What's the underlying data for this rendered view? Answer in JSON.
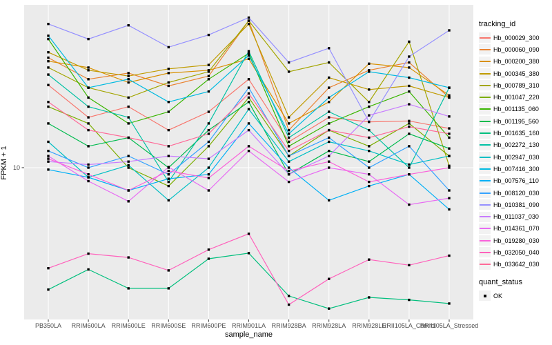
{
  "figure": {
    "background": "#FFFFFF",
    "panel_background": "#EBEBEB",
    "grid_color": "#FFFFFF",
    "tick_color": "#333333",
    "tick_label_color": "#4D4D4D",
    "axis_title_color": "#000000",
    "point_color": "#000000",
    "legend_key_background": "#F2F2F2"
  },
  "chart_data": {
    "type": "line",
    "title": "",
    "xlabel": "sample_name",
    "ylabel": "FPKM + 1",
    "y_scale": "log10",
    "y_tick_labels": [
      "10"
    ],
    "y_tick_values": [
      10
    ],
    "ylim": [
      0.9,
      120
    ],
    "grid": "major-on",
    "legend_position": "right",
    "categories": [
      "PB350LA",
      "RRIM600LA",
      "RRIM600LE",
      "RRIM600SE",
      "RRIM600PE",
      "RRIM901LA",
      "RRIM928BA",
      "RRIM928LA",
      "RRIM928LE",
      "RRII105LA_Control",
      "RRII105LA_Stressed"
    ],
    "series": [
      {
        "name": "Hb_000029_300",
        "color": "#F8766D",
        "values": [
          36.5,
          22,
          26,
          18,
          24,
          40,
          15,
          22,
          20.5,
          20.8,
          18.5
        ]
      },
      {
        "name": "Hb_000060_090",
        "color": "#EA8331",
        "values": [
          56,
          40,
          44,
          36,
          42,
          100,
          18,
          35,
          46,
          52,
          30
        ]
      },
      {
        "name": "Hb_000200_380",
        "color": "#D89000",
        "values": [
          53,
          48,
          38,
          44,
          46,
          55,
          20,
          28,
          51,
          48,
          31
        ]
      },
      {
        "name": "Hb_000345_380",
        "color": "#C09B00",
        "values": [
          61,
          46,
          42,
          47,
          50,
          95,
          22,
          41,
          34,
          36,
          30
        ]
      },
      {
        "name": "Hb_000789_310",
        "color": "#A3A500",
        "values": [
          48,
          35,
          30,
          38,
          45,
          100,
          45,
          52,
          28,
          72,
          10.3
        ]
      },
      {
        "name": "Hb_001047_220",
        "color": "#7CAE00",
        "values": [
          26,
          20,
          10,
          7.5,
          14,
          30,
          12,
          18,
          14,
          20,
          12
        ]
      },
      {
        "name": "Hb_001135_060",
        "color": "#39B600",
        "values": [
          75,
          30,
          20,
          24,
          40,
          60,
          14,
          20,
          26,
          33,
          16
        ]
      },
      {
        "name": "Hb_001195_560",
        "color": "#00BB4E",
        "values": [
          20,
          14,
          16,
          10,
          18,
          28,
          9,
          13,
          11,
          17,
          13.5
        ]
      },
      {
        "name": "Hb_001635_160",
        "color": "#00BF7D",
        "values": [
          1.48,
          2.03,
          1.51,
          1.51,
          2.4,
          2.62,
          1.34,
          1.1,
          1.31,
          1.26,
          1.19
        ]
      },
      {
        "name": "Hb_002272_130",
        "color": "#00C1A3",
        "values": [
          43,
          26,
          22,
          8,
          20,
          62,
          16,
          24,
          18,
          10,
          35
        ]
      },
      {
        "name": "Hb_002947_030",
        "color": "#00BFC4",
        "values": [
          15,
          8.6,
          10.4,
          6,
          10,
          25,
          11,
          15,
          13,
          10.5,
          12
        ]
      },
      {
        "name": "Hb_007416_300",
        "color": "#00BAE0",
        "values": [
          79,
          35,
          40,
          28,
          33,
          58,
          17,
          30,
          45,
          41,
          35
        ]
      },
      {
        "name": "Hb_007576_110",
        "color": "#00B0F6",
        "values": [
          9.7,
          8.6,
          7,
          8.4,
          9,
          20,
          10,
          6,
          7.5,
          9,
          5.2
        ]
      },
      {
        "name": "Hb_008120_030",
        "color": "#35A2FF",
        "values": [
          13,
          10,
          12,
          9,
          15,
          35,
          12,
          16,
          10,
          14,
          7
        ]
      },
      {
        "name": "Hb_010381_090",
        "color": "#9590FF",
        "values": [
          95,
          75,
          93,
          66,
          80,
          105,
          52,
          65,
          20.5,
          57,
          86
        ]
      },
      {
        "name": "Hb_011037_030",
        "color": "#C77CFF",
        "values": [
          11,
          10.5,
          11,
          12,
          11.5,
          18,
          9,
          12,
          22.7,
          27,
          22.3
        ]
      },
      {
        "name": "Hb_014361_070",
        "color": "#E76BF3",
        "values": [
          12,
          8.1,
          5.9,
          10.1,
          7,
          13,
          8,
          10,
          9,
          5.6,
          6.2
        ]
      },
      {
        "name": "Hb_019280_030",
        "color": "#FA62DB",
        "values": [
          11.5,
          9,
          7,
          9.5,
          8.5,
          14,
          9.5,
          11,
          8,
          9,
          10
        ]
      },
      {
        "name": "Hb_032050_040",
        "color": "#FF62BC",
        "values": [
          2.07,
          2.6,
          2.45,
          2,
          2.77,
          3.55,
          1.17,
          1.75,
          2.37,
          2.17,
          2.52
        ]
      },
      {
        "name": "Hb_033642_030",
        "color": "#FF6A98",
        "values": [
          28,
          18,
          16,
          14,
          17,
          32,
          13,
          18,
          16,
          19,
          17
        ]
      }
    ],
    "legend": {
      "color_title": "tracking_id",
      "shape_title": "quant_status",
      "shape_items": [
        "OK"
      ]
    }
  }
}
